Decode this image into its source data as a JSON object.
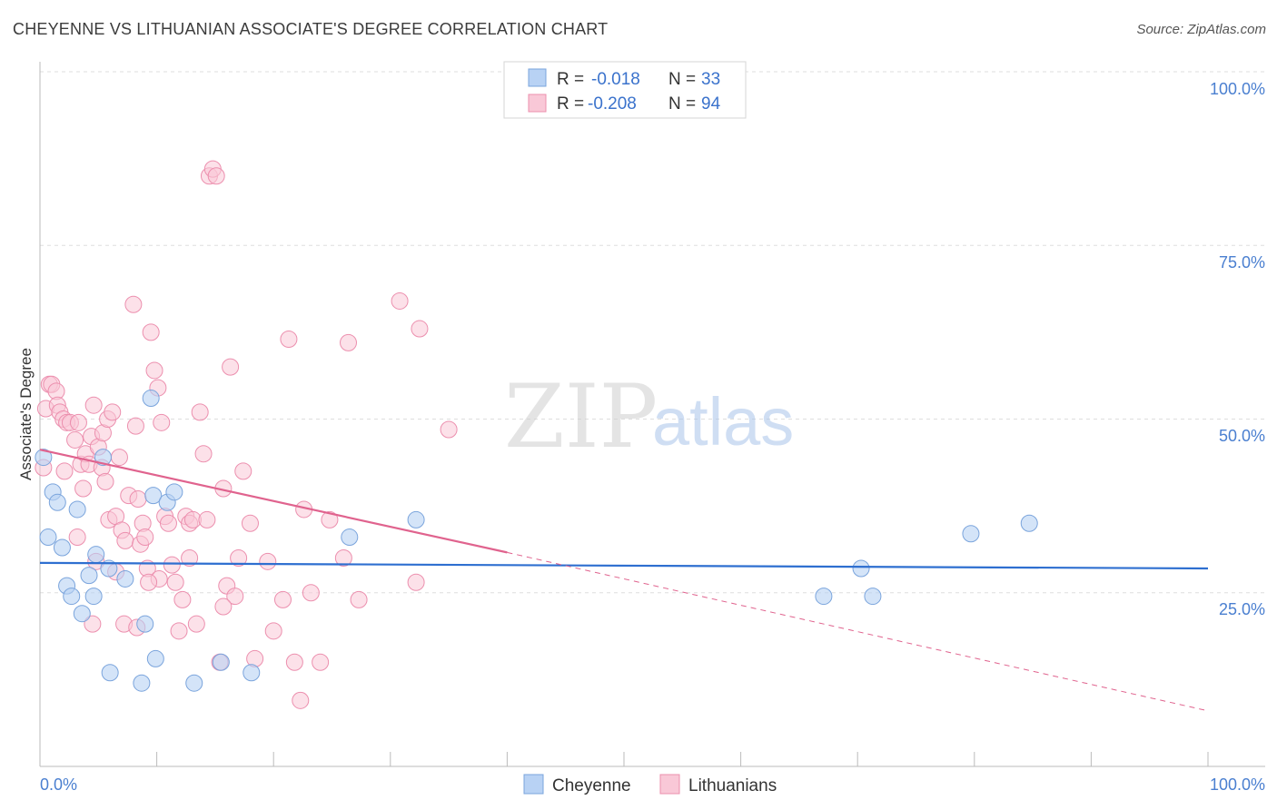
{
  "title": "CHEYENNE VS LITHUANIAN ASSOCIATE'S DEGREE CORRELATION CHART",
  "source": "Source: ZipAtlas.com",
  "watermark": {
    "zip": "ZIP",
    "atlas": "atlas"
  },
  "colors": {
    "cheyenne_fill": "#b8d2f4",
    "cheyenne_stroke": "#7aa4dc",
    "cheyenne_line": "#2e6fd0",
    "lith_fill": "#f9c8d7",
    "lith_stroke": "#ec8fae",
    "lith_line": "#e0638e",
    "grid": "#dddddd",
    "axis_text": "#4a7fd0"
  },
  "legend": {
    "rows": [
      {
        "r_label": "R =",
        "r_value": "-0.018",
        "n_label": "N =",
        "n_value": "33"
      },
      {
        "r_label": "R =",
        "r_value": "-0.208",
        "n_label": "N =",
        "n_value": "94"
      }
    ]
  },
  "bottom_legend": {
    "cheyenne": "Cheyenne",
    "lithuanians": "Lithuanians"
  },
  "chart_data": {
    "type": "scatter",
    "ylabel": "Associate's Degree",
    "xlim": [
      0,
      100
    ],
    "ylim": [
      0,
      100
    ],
    "x_tick_labels": [
      "0.0%",
      "100.0%"
    ],
    "y_tick_labels": [
      "25.0%",
      "50.0%",
      "75.0%",
      "100.0%"
    ],
    "y_ticks": [
      25,
      50,
      75,
      100
    ],
    "series": [
      {
        "name": "Cheyenne",
        "points": [
          [
            0.3,
            44.5
          ],
          [
            0.7,
            33
          ],
          [
            1.1,
            39.5
          ],
          [
            1.5,
            38
          ],
          [
            1.9,
            31.5
          ],
          [
            2.3,
            26
          ],
          [
            2.7,
            24.5
          ],
          [
            3.2,
            37
          ],
          [
            3.6,
            22
          ],
          [
            4.2,
            27.5
          ],
          [
            4.6,
            24.5
          ],
          [
            4.8,
            30.5
          ],
          [
            5.4,
            44.5
          ],
          [
            5.9,
            28.5
          ],
          [
            7.3,
            27
          ],
          [
            6,
            13.5
          ],
          [
            8.7,
            12
          ],
          [
            9.0,
            20.5
          ],
          [
            9.5,
            53
          ],
          [
            9.9,
            15.5
          ],
          [
            9.7,
            39
          ],
          [
            10.9,
            38
          ],
          [
            11.5,
            39.5
          ],
          [
            13.2,
            12
          ],
          [
            15.5,
            15
          ],
          [
            18.1,
            13.5
          ],
          [
            26.5,
            33
          ],
          [
            32.2,
            35.5
          ],
          [
            67.1,
            24.5
          ],
          [
            70.3,
            28.5
          ],
          [
            71.3,
            24.5
          ],
          [
            79.7,
            33.5
          ],
          [
            84.7,
            35
          ]
        ],
        "trend": {
          "x": [
            0,
            100
          ],
          "y": [
            29.3,
            28.5
          ]
        }
      },
      {
        "name": "Lithuanians",
        "points": [
          [
            0.3,
            43
          ],
          [
            0.5,
            51.5
          ],
          [
            0.8,
            55
          ],
          [
            1.0,
            55
          ],
          [
            1.4,
            54
          ],
          [
            1.5,
            52
          ],
          [
            1.7,
            51
          ],
          [
            2.0,
            50
          ],
          [
            2.3,
            49.5
          ],
          [
            2.6,
            49.5
          ],
          [
            3.0,
            47
          ],
          [
            3.3,
            49.5
          ],
          [
            3.5,
            43.5
          ],
          [
            3.7,
            40
          ],
          [
            3.9,
            45
          ],
          [
            4.2,
            43.5
          ],
          [
            4.4,
            47.5
          ],
          [
            4.6,
            52
          ],
          [
            4.8,
            29.5
          ],
          [
            5.0,
            46
          ],
          [
            5.3,
            43
          ],
          [
            5.4,
            48
          ],
          [
            5.6,
            41
          ],
          [
            5.8,
            50
          ],
          [
            5.9,
            35.5
          ],
          [
            6.2,
            51
          ],
          [
            6.5,
            36
          ],
          [
            6.8,
            44.5
          ],
          [
            7.0,
            34
          ],
          [
            7.3,
            32.5
          ],
          [
            7.6,
            39
          ],
          [
            8.0,
            66.5
          ],
          [
            8.2,
            49
          ],
          [
            8.4,
            38.5
          ],
          [
            8.6,
            32
          ],
          [
            8.8,
            35
          ],
          [
            9.0,
            33
          ],
          [
            9.2,
            28.5
          ],
          [
            9.5,
            62.5
          ],
          [
            9.8,
            57
          ],
          [
            10.1,
            54.5
          ],
          [
            10.4,
            49.5
          ],
          [
            10.7,
            36
          ],
          [
            11.0,
            35
          ],
          [
            11.3,
            29
          ],
          [
            11.6,
            26.5
          ],
          [
            11.9,
            19.5
          ],
          [
            12.2,
            24
          ],
          [
            12.5,
            36
          ],
          [
            12.8,
            35
          ],
          [
            13.1,
            35.5
          ],
          [
            13.4,
            20.5
          ],
          [
            13.7,
            51
          ],
          [
            14.0,
            45
          ],
          [
            14.3,
            35.5
          ],
          [
            14.5,
            85
          ],
          [
            14.8,
            86
          ],
          [
            15.1,
            85
          ],
          [
            15.4,
            15
          ],
          [
            15.7,
            40
          ],
          [
            16.0,
            26
          ],
          [
            16.3,
            57.5
          ],
          [
            16.7,
            24.5
          ],
          [
            17.0,
            30
          ],
          [
            17.4,
            42.5
          ],
          [
            18.0,
            35
          ],
          [
            18.4,
            15.5
          ],
          [
            19.5,
            29.5
          ],
          [
            20.0,
            19.5
          ],
          [
            20.8,
            24
          ],
          [
            21.3,
            61.5
          ],
          [
            21.8,
            15
          ],
          [
            22.3,
            9.5
          ],
          [
            22.6,
            37
          ],
          [
            23.2,
            25
          ],
          [
            24.0,
            15
          ],
          [
            24.8,
            35.5
          ],
          [
            26.0,
            30
          ],
          [
            26.4,
            61
          ],
          [
            27.3,
            24
          ],
          [
            30.8,
            67
          ],
          [
            32.2,
            26.5
          ],
          [
            32.5,
            63
          ],
          [
            35.0,
            48.5
          ],
          [
            10.2,
            27
          ],
          [
            7.2,
            20.5
          ],
          [
            6.5,
            28
          ],
          [
            12.8,
            30
          ],
          [
            3.2,
            33
          ],
          [
            2.1,
            42.5
          ],
          [
            9.3,
            26.5
          ],
          [
            15.7,
            23
          ],
          [
            8.3,
            20
          ],
          [
            4.5,
            20.5
          ]
        ],
        "trend": {
          "x": [
            0,
            40,
            100
          ],
          "y": [
            45.6,
            30.8,
            8
          ]
        }
      }
    ]
  }
}
